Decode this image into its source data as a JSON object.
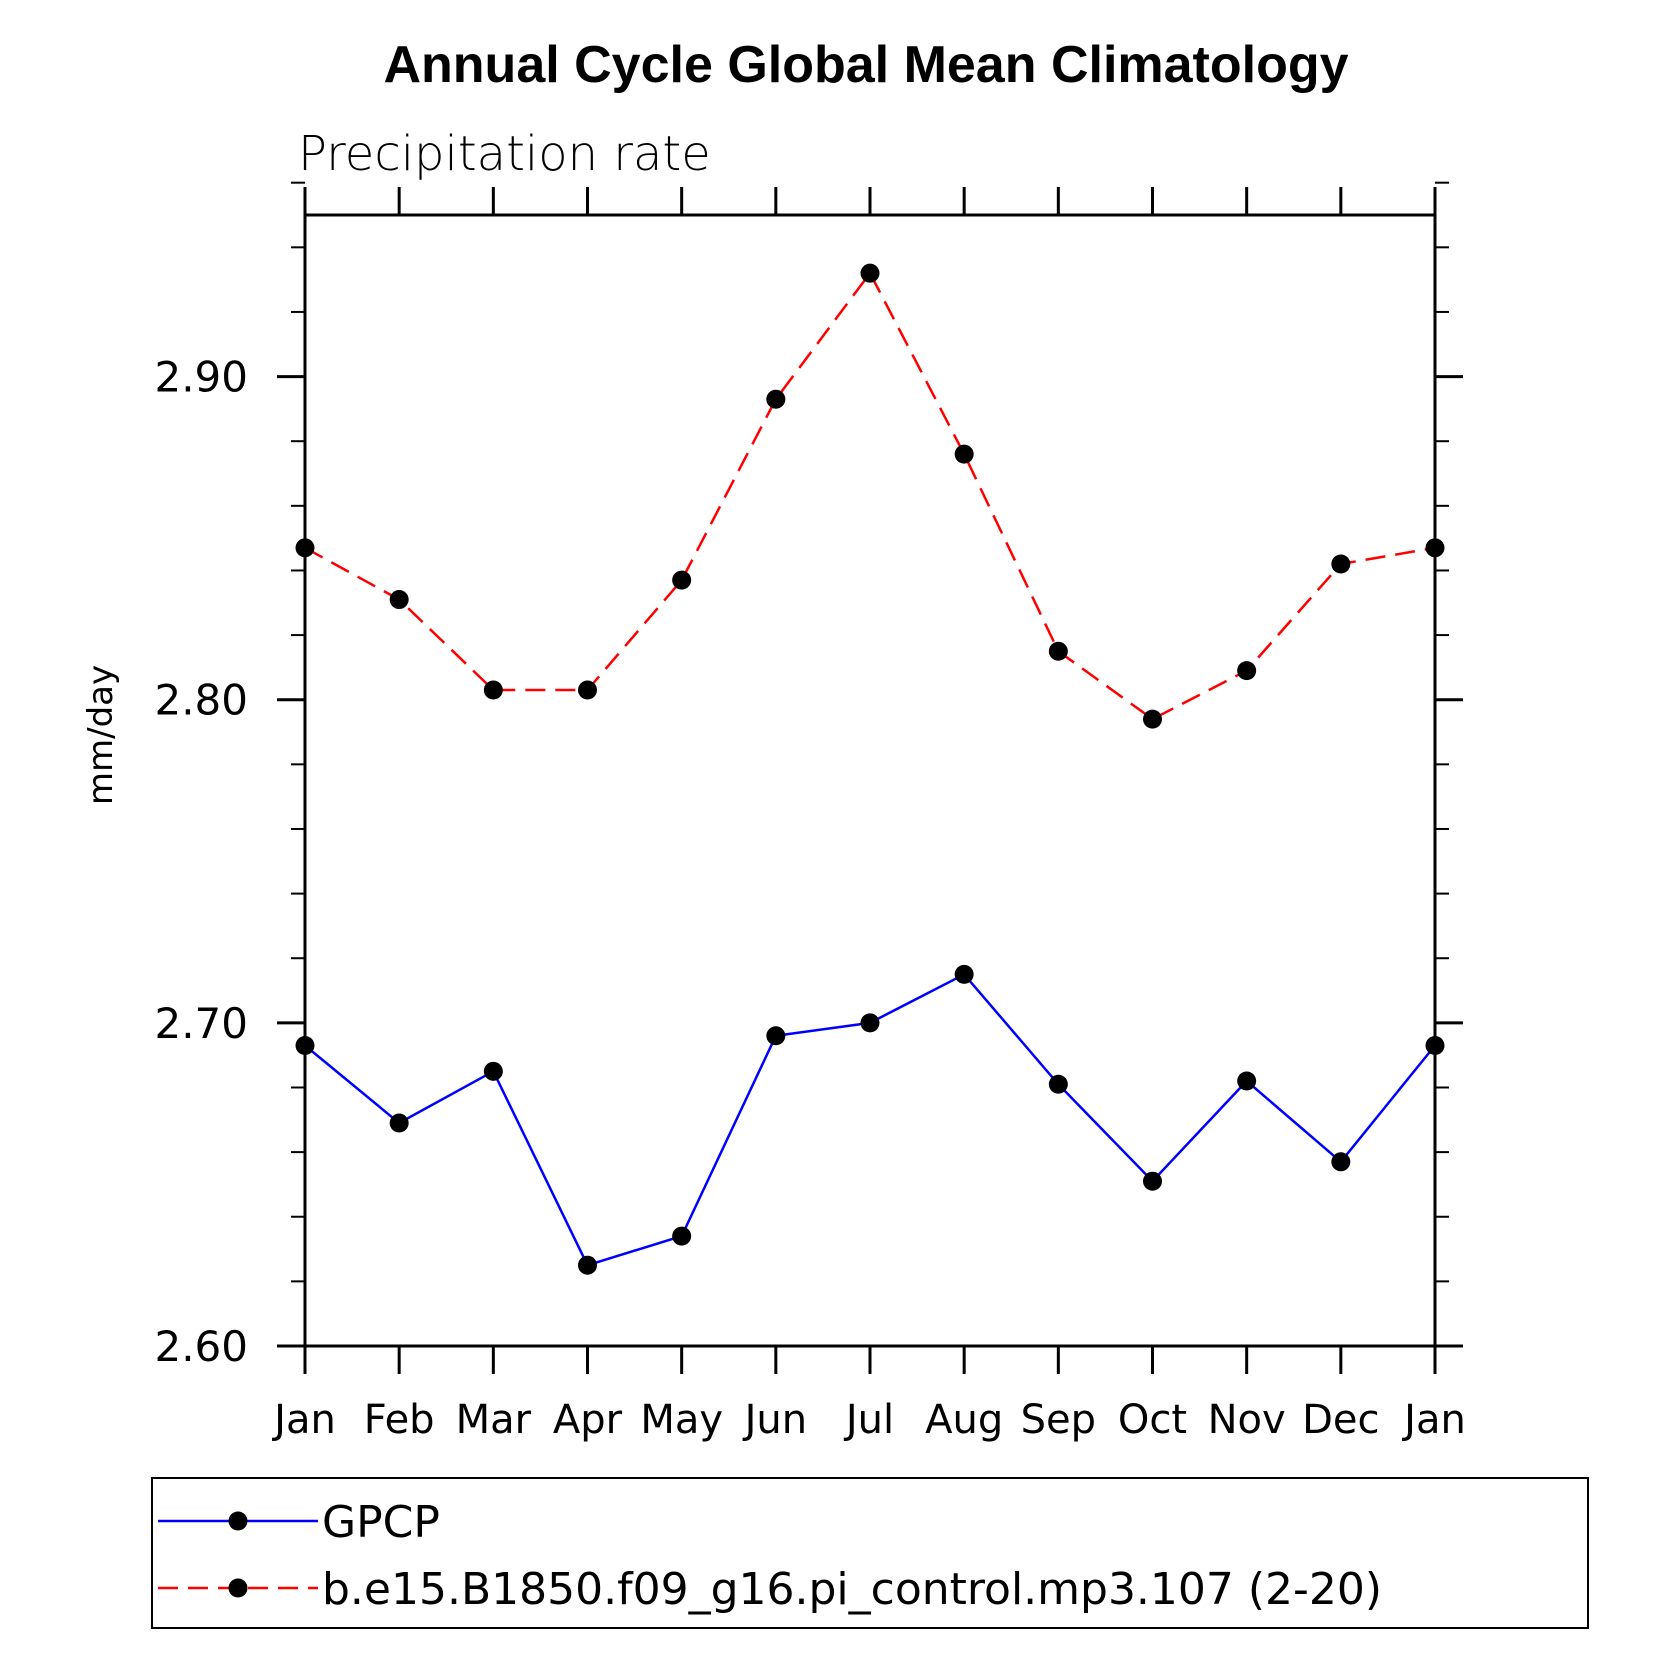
{
  "chart_data": {
    "type": "line",
    "title": "Annual Cycle Global Mean Climatology",
    "subtitle": "Precipitation rate",
    "ylabel": "mm/day",
    "xlabel": "",
    "categories": [
      "Jan",
      "Feb",
      "Mar",
      "Apr",
      "May",
      "Jun",
      "Jul",
      "Aug",
      "Sep",
      "Oct",
      "Nov",
      "Dec",
      "Jan"
    ],
    "ylim": [
      2.6,
      2.95
    ],
    "yticks": [
      2.6,
      2.7,
      2.8,
      2.9
    ],
    "ytick_labels": [
      "2.60",
      "2.70",
      "2.80",
      "2.90"
    ],
    "y_minor_step": 0.02,
    "grid": false,
    "legend_position": "bottom",
    "series": [
      {
        "name": "GPCP",
        "color": "#0000ff",
        "dash": "solid",
        "marker": "filled-circle",
        "values": [
          2.693,
          2.669,
          2.685,
          2.625,
          2.634,
          2.696,
          2.7,
          2.715,
          2.681,
          2.651,
          2.682,
          2.657,
          2.693
        ]
      },
      {
        "name": "b.e15.B1850.f09_g16.pi_control.mp3.107 (2-20)",
        "color": "#ff0000",
        "dash": "dashed",
        "marker": "filled-circle",
        "values": [
          2.847,
          2.831,
          2.803,
          2.803,
          2.837,
          2.893,
          2.932,
          2.876,
          2.815,
          2.794,
          2.809,
          2.842,
          2.847
        ]
      }
    ]
  }
}
